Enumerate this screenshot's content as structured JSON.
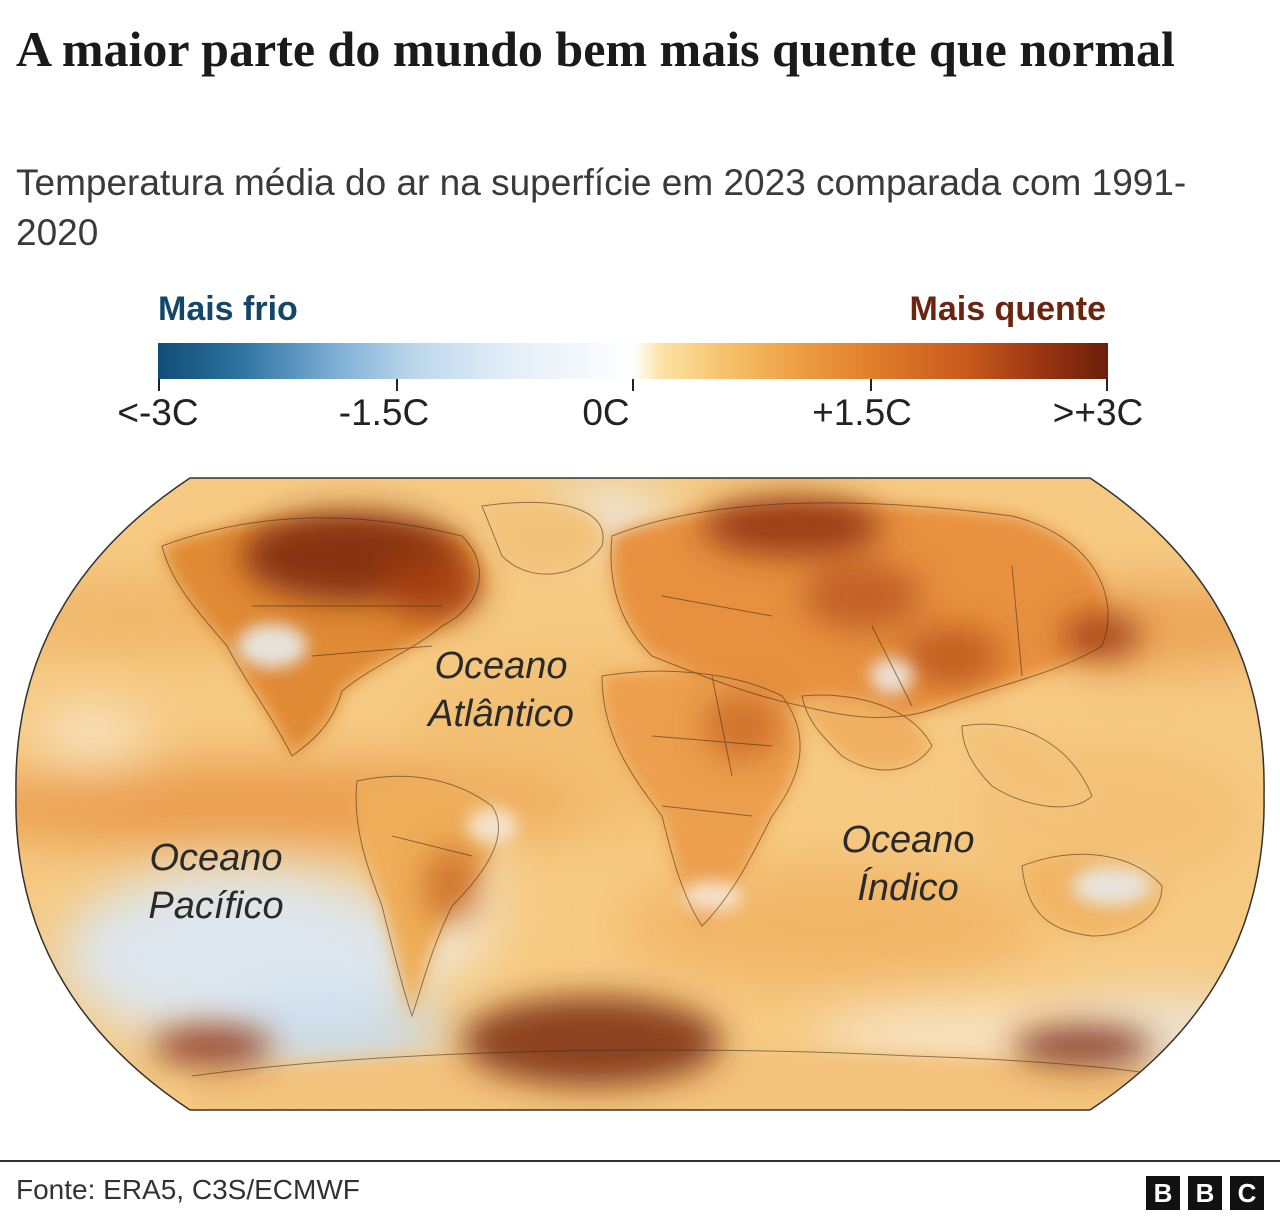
{
  "header": {
    "title": "A maior parte do mundo bem mais quente que normal",
    "subtitle": "Temperatura média do ar na superfície em 2023 comparada com 1991-2020"
  },
  "legend": {
    "cold_label": "Mais frio",
    "warm_label": "Mais quente",
    "ticks": [
      "<-3C",
      "-1.5C",
      "0C",
      "+1.5C",
      ">+3C"
    ],
    "tick_values": [
      -3,
      -1.5,
      0,
      1.5,
      3
    ]
  },
  "map": {
    "ocean_labels": {
      "atlantic_line1": "Oceano",
      "atlantic_line2": "Atlântico",
      "pacific_line1": "Oceano",
      "pacific_line2": "Pacífico",
      "indian_line1": "Oceano",
      "indian_line2": "Índico"
    }
  },
  "footer": {
    "source": "Fonte: ERA5, C3S/ECMWF",
    "logo": [
      "B",
      "B",
      "C"
    ]
  },
  "colors": {
    "cold": "#12466b",
    "warm": "#6b2410",
    "neutral": "#ffffff"
  }
}
